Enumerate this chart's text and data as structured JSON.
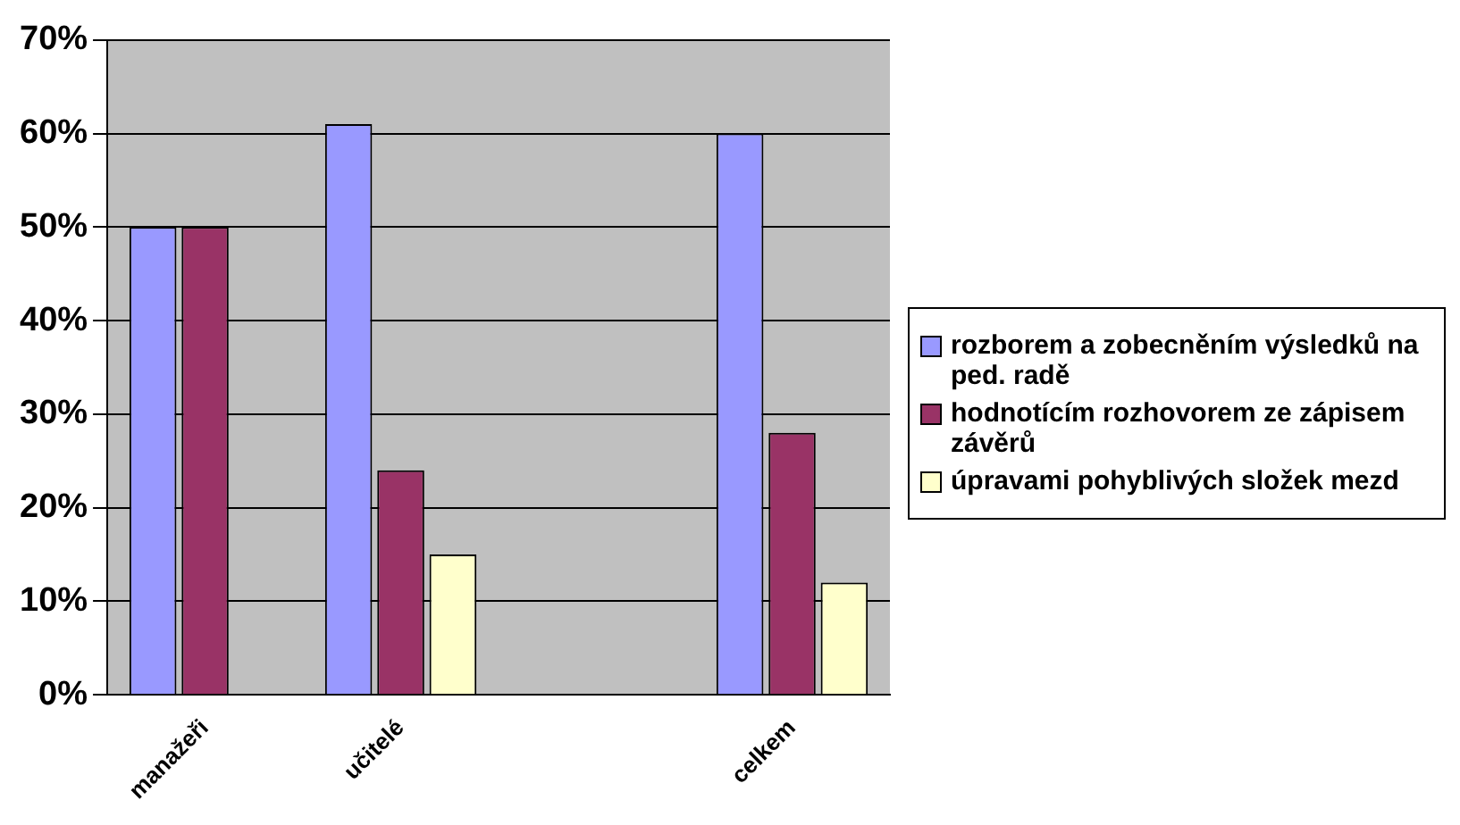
{
  "chart_data": {
    "type": "bar",
    "categories": [
      "manažeři",
      "učitelé",
      null,
      "celkem"
    ],
    "series": [
      {
        "name": "rozborem a zobecněním výsledků na ped. radě",
        "color": "#9999ff",
        "values": [
          50,
          61,
          null,
          60
        ]
      },
      {
        "name": "hodnotícím rozhovorem ze zápisem závěrů",
        "color": "#993366",
        "values": [
          50,
          24,
          null,
          28
        ]
      },
      {
        "name": "úpravami pohyblivých složek mezd",
        "color": "#ffffcc",
        "values": [
          0,
          15,
          null,
          12
        ]
      }
    ],
    "ylim": [
      0,
      70
    ],
    "yticks": [
      {
        "value": 0,
        "label": "0%"
      },
      {
        "value": 10,
        "label": "10%"
      },
      {
        "value": 20,
        "label": "20%"
      },
      {
        "value": 30,
        "label": "30%"
      },
      {
        "value": 40,
        "label": "40%"
      },
      {
        "value": 50,
        "label": "50%"
      },
      {
        "value": 60,
        "label": "60%"
      },
      {
        "value": 70,
        "label": "70%"
      }
    ],
    "grid": "y",
    "legend": "right"
  }
}
